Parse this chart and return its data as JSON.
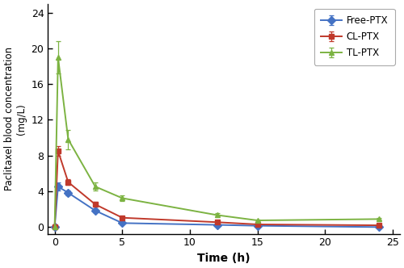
{
  "time_points": [
    0,
    0.25,
    1,
    3,
    5,
    12,
    15,
    24
  ],
  "free_ptx": {
    "y": [
      0,
      4.5,
      3.8,
      1.8,
      0.4,
      0.2,
      0.1,
      -0.05
    ],
    "yerr": [
      0,
      0.45,
      0.3,
      0.2,
      0.08,
      0.08,
      0.05,
      0.04
    ],
    "color": "#4472C4",
    "marker": "D",
    "label": "Free-PTX"
  },
  "cl_ptx": {
    "y": [
      0,
      8.5,
      5.0,
      2.5,
      1.0,
      0.5,
      0.25,
      0.15
    ],
    "yerr": [
      0,
      0.55,
      0.35,
      0.25,
      0.12,
      0.08,
      0.05,
      0.05
    ],
    "color": "#C0392B",
    "marker": "s",
    "label": "CL-PTX"
  },
  "tl_ptx": {
    "y": [
      0,
      19.0,
      9.8,
      4.5,
      3.2,
      1.3,
      0.7,
      0.85
    ],
    "yerr": [
      0,
      1.8,
      1.1,
      0.45,
      0.35,
      0.18,
      0.1,
      0.1
    ],
    "color": "#7CB342",
    "marker": "^",
    "label": "TL-PTX"
  },
  "xlabel": "Time (h)",
  "ylabel_line1": "Paclitaxel blood concentration",
  "ylabel_line2": "(mg/L)",
  "xlim": [
    -0.5,
    25.5
  ],
  "ylim": [
    -0.8,
    25
  ],
  "yticks": [
    0,
    4,
    8,
    12,
    16,
    20,
    24
  ],
  "xticks": [
    0,
    5,
    10,
    15,
    20,
    25
  ],
  "figsize": [
    5.0,
    3.32
  ],
  "dpi": 100,
  "bg_color": "#ffffff",
  "legend_loc": "upper right"
}
